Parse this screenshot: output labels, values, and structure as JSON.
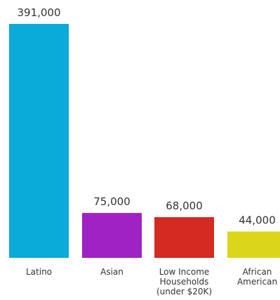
{
  "chart_data": {
    "type": "bar",
    "categories": [
      "Latino",
      "Asian",
      "Low Income Households (under $20K)",
      "African American"
    ],
    "category_label_lines": [
      [
        "Latino"
      ],
      [
        "Asian"
      ],
      [
        "Low Income",
        "Households",
        "(under $20K)"
      ],
      [
        "African",
        "American"
      ]
    ],
    "values": [
      391000,
      75000,
      68000,
      44000
    ],
    "value_labels": [
      "391,000",
      "75,000",
      "68,000",
      "44,000"
    ],
    "colors": [
      "#0AAAD9",
      "#9E22C4",
      "#D42A22",
      "#DCD61A"
    ],
    "title": "",
    "xlabel": "",
    "ylabel": "",
    "ylim": [
      0,
      391000
    ],
    "grid": false,
    "legend": "none"
  }
}
